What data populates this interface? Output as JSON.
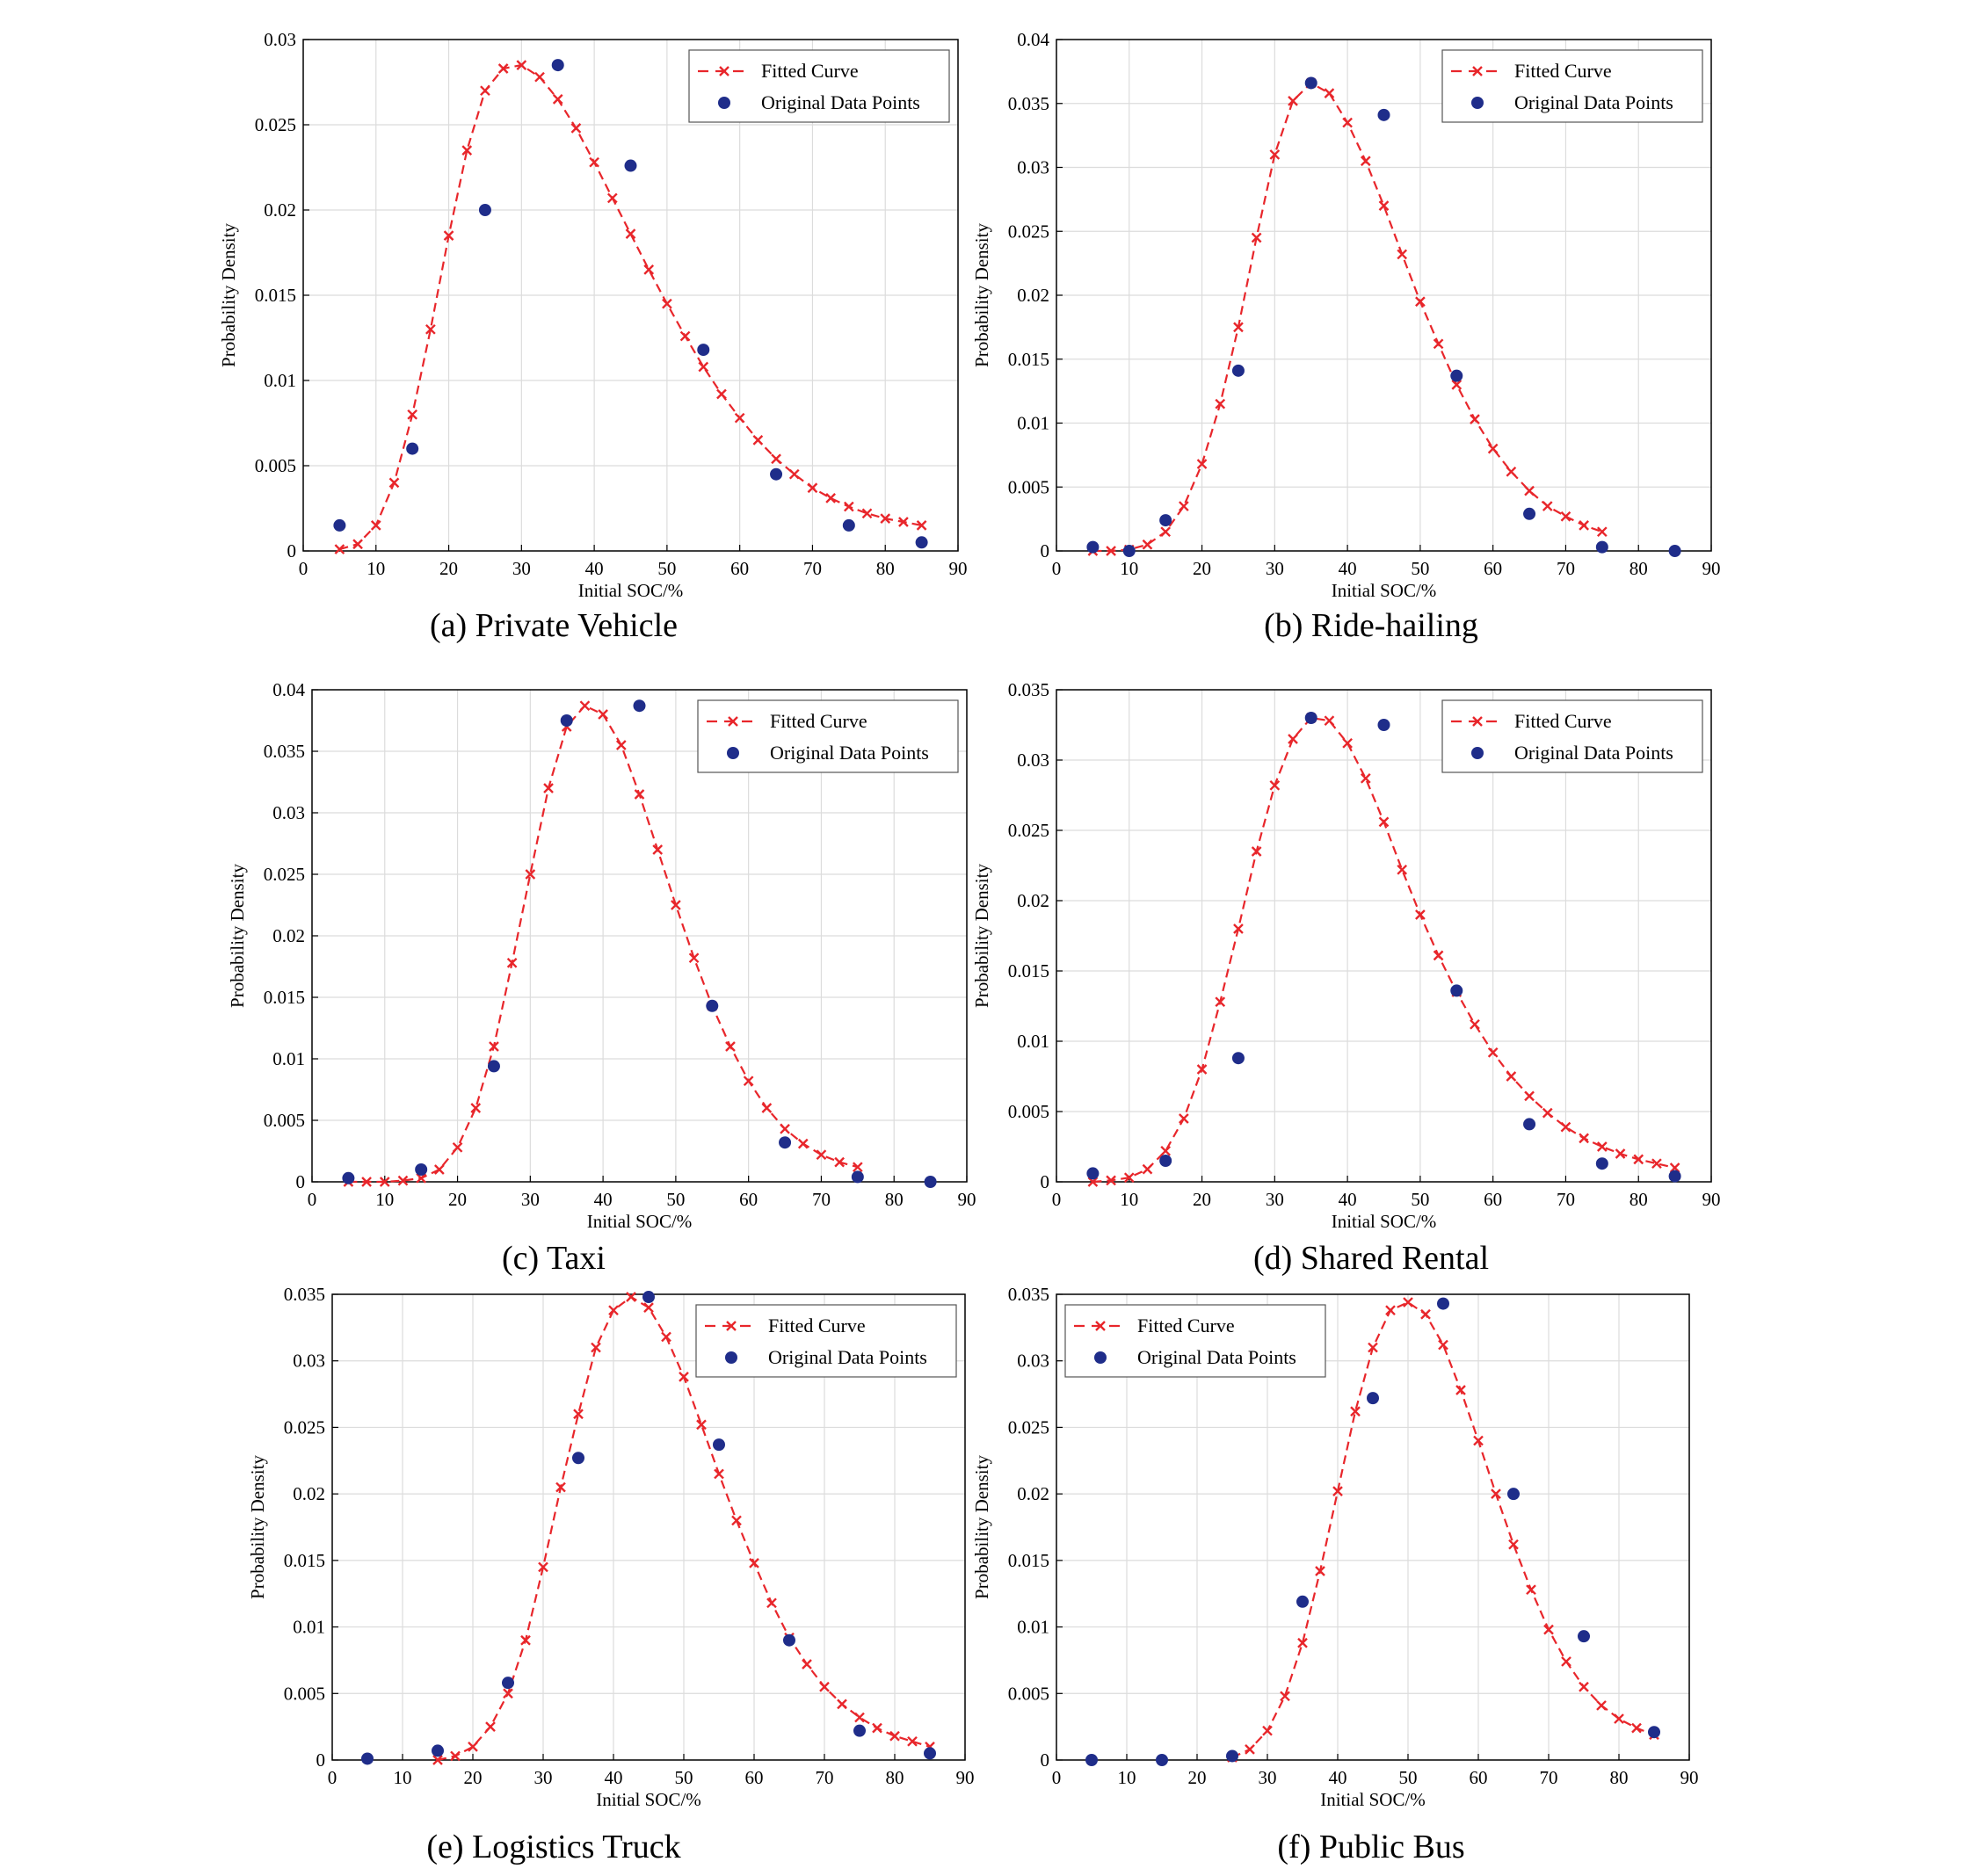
{
  "colors": {
    "fitted": "#e8262b",
    "points": "#1f2d8a",
    "grid": "#dcdcdc",
    "frame": "#000000"
  },
  "chart_data": [
    {
      "type": "scatter",
      "caption": "(a) Private Vehicle",
      "xlabel": "Initial SOC/%",
      "ylabel": "Probability Density",
      "xlim": [
        0,
        90
      ],
      "ylim": [
        0,
        0.03
      ],
      "xticks": [
        "0",
        "10",
        "20",
        "30",
        "40",
        "50",
        "60",
        "70",
        "80",
        "90"
      ],
      "yticks": [
        "0",
        "0.005",
        "0.01",
        "0.015",
        "0.02",
        "0.025",
        "0.03"
      ],
      "grid": true,
      "legend_position": "top-right",
      "series": [
        {
          "name": "Fitted Curve",
          "style": "dashed line with x markers",
          "x": [
            5,
            7.5,
            10,
            12.5,
            15,
            17.5,
            20,
            22.5,
            25,
            27.5,
            30,
            32.5,
            35,
            37.5,
            40,
            42.5,
            45,
            47.5,
            50,
            52.5,
            55,
            57.5,
            60,
            62.5,
            65,
            67.5,
            70,
            72.5,
            75,
            77.5,
            80,
            82.5,
            85
          ],
          "y": [
            0.0001,
            0.0004,
            0.0015,
            0.004,
            0.008,
            0.013,
            0.0185,
            0.0235,
            0.027,
            0.0283,
            0.0285,
            0.0278,
            0.0265,
            0.0248,
            0.0228,
            0.0207,
            0.0186,
            0.0165,
            0.0145,
            0.0126,
            0.0108,
            0.0092,
            0.0078,
            0.0065,
            0.0054,
            0.0045,
            0.0037,
            0.0031,
            0.0026,
            0.0022,
            0.0019,
            0.0017,
            0.0015
          ]
        },
        {
          "name": "Original Data Points",
          "style": "markers",
          "x": [
            5,
            15,
            25,
            35,
            45,
            55,
            65,
            75,
            85
          ],
          "y": [
            0.0015,
            0.006,
            0.02,
            0.0285,
            0.0226,
            0.0118,
            0.0045,
            0.0015,
            0.0005
          ]
        }
      ]
    },
    {
      "type": "scatter",
      "caption": "(b) Ride-hailing",
      "xlabel": "Initial SOC/%",
      "ylabel": "Probability Density",
      "xlim": [
        0,
        90
      ],
      "ylim": [
        0,
        0.04
      ],
      "xticks": [
        "0",
        "10",
        "20",
        "30",
        "40",
        "50",
        "60",
        "70",
        "80",
        "90"
      ],
      "yticks": [
        "0",
        "0.005",
        "0.01",
        "0.015",
        "0.02",
        "0.025",
        "0.03",
        "0.035",
        "0.04"
      ],
      "grid": true,
      "legend_position": "top-right",
      "series": [
        {
          "name": "Fitted Curve",
          "style": "dashed line with x markers",
          "x": [
            5,
            7.5,
            10,
            12.5,
            15,
            17.5,
            20,
            22.5,
            25,
            27.5,
            30,
            32.5,
            35,
            37.5,
            40,
            42.5,
            45,
            47.5,
            50,
            52.5,
            55,
            57.5,
            60,
            62.5,
            65,
            67.5,
            70,
            72.5,
            75
          ],
          "y": [
            0,
            0,
            0.0001,
            0.0005,
            0.0015,
            0.0035,
            0.0068,
            0.0115,
            0.0175,
            0.0245,
            0.031,
            0.0352,
            0.0366,
            0.0358,
            0.0335,
            0.0305,
            0.027,
            0.0232,
            0.0195,
            0.0162,
            0.013,
            0.0103,
            0.008,
            0.0062,
            0.0047,
            0.0035,
            0.0027,
            0.002,
            0.0015
          ]
        },
        {
          "name": "Original Data Points",
          "style": "markers",
          "x": [
            5,
            10,
            15,
            25,
            35,
            45,
            55,
            65,
            75,
            85
          ],
          "y": [
            0.0003,
            0,
            0.0024,
            0.0141,
            0.0366,
            0.0341,
            0.0137,
            0.0029,
            0.0003,
            0
          ]
        }
      ]
    },
    {
      "type": "scatter",
      "caption": "(c) Taxi",
      "xlabel": "Initial SOC/%",
      "ylabel": "Probability Density",
      "xlim": [
        0,
        90
      ],
      "ylim": [
        0,
        0.04
      ],
      "xticks": [
        "0",
        "10",
        "20",
        "30",
        "40",
        "50",
        "60",
        "70",
        "80",
        "90"
      ],
      "yticks": [
        "0",
        "0.005",
        "0.01",
        "0.015",
        "0.02",
        "0.025",
        "0.03",
        "0.035",
        "0.04"
      ],
      "grid": true,
      "legend_position": "top-right",
      "series": [
        {
          "name": "Fitted Curve",
          "style": "dashed line with x markers",
          "x": [
            5,
            7.5,
            10,
            12.5,
            15,
            17.5,
            20,
            22.5,
            25,
            27.5,
            30,
            32.5,
            35,
            37.5,
            40,
            42.5,
            45,
            47.5,
            50,
            52.5,
            55,
            57.5,
            60,
            62.5,
            65,
            67.5,
            70,
            72.5,
            75
          ],
          "y": [
            0,
            0,
            0,
            0.0001,
            0.0003,
            0.001,
            0.0028,
            0.006,
            0.011,
            0.0178,
            0.025,
            0.032,
            0.037,
            0.0387,
            0.038,
            0.0355,
            0.0315,
            0.027,
            0.0225,
            0.0182,
            0.0143,
            0.011,
            0.0082,
            0.006,
            0.0043,
            0.0031,
            0.0022,
            0.0016,
            0.0012
          ]
        },
        {
          "name": "Original Data Points",
          "style": "markers",
          "x": [
            5,
            15,
            25,
            35,
            45,
            55,
            65,
            75,
            85
          ],
          "y": [
            0.0003,
            0.001,
            0.0094,
            0.0375,
            0.0387,
            0.0143,
            0.0032,
            0.0004,
            0
          ]
        }
      ]
    },
    {
      "type": "scatter",
      "caption": "(d) Shared Rental",
      "xlabel": "Initial SOC/%",
      "ylabel": "Probability Density",
      "xlim": [
        0,
        90
      ],
      "ylim": [
        0,
        0.035
      ],
      "xticks": [
        "0",
        "10",
        "20",
        "30",
        "40",
        "50",
        "60",
        "70",
        "80",
        "90"
      ],
      "yticks": [
        "0",
        "0.005",
        "0.01",
        "0.015",
        "0.02",
        "0.025",
        "0.03",
        "0.035"
      ],
      "grid": true,
      "legend_position": "top-right",
      "series": [
        {
          "name": "Fitted Curve",
          "style": "dashed line with x markers",
          "x": [
            5,
            7.5,
            10,
            12.5,
            15,
            17.5,
            20,
            22.5,
            25,
            27.5,
            30,
            32.5,
            35,
            37.5,
            40,
            42.5,
            45,
            47.5,
            50,
            52.5,
            55,
            57.5,
            60,
            62.5,
            65,
            67.5,
            70,
            72.5,
            75,
            77.5,
            80,
            82.5,
            85
          ],
          "y": [
            0,
            0.0001,
            0.0003,
            0.0009,
            0.0022,
            0.0045,
            0.008,
            0.0128,
            0.018,
            0.0235,
            0.0282,
            0.0315,
            0.033,
            0.0328,
            0.0312,
            0.0287,
            0.0256,
            0.0222,
            0.019,
            0.0161,
            0.0135,
            0.0112,
            0.0092,
            0.0075,
            0.0061,
            0.0049,
            0.0039,
            0.0031,
            0.0025,
            0.002,
            0.0016,
            0.0013,
            0.001
          ]
        },
        {
          "name": "Original Data Points",
          "style": "markers",
          "x": [
            5,
            15,
            25,
            35,
            45,
            55,
            65,
            75,
            85
          ],
          "y": [
            0.0006,
            0.0015,
            0.0088,
            0.033,
            0.0325,
            0.0136,
            0.0041,
            0.0013,
            0.0004
          ]
        }
      ]
    },
    {
      "type": "scatter",
      "caption": "(e) Logistics Truck",
      "xlabel": "Initial SOC/%",
      "ylabel": "Probability Density",
      "xlim": [
        0,
        90
      ],
      "ylim": [
        0,
        0.035
      ],
      "xticks": [
        "0",
        "10",
        "20",
        "30",
        "40",
        "50",
        "60",
        "70",
        "80",
        "90"
      ],
      "yticks": [
        "0",
        "0.005",
        "0.01",
        "0.015",
        "0.02",
        "0.025",
        "0.03",
        "0.035"
      ],
      "grid": true,
      "legend_position": "top-right",
      "series": [
        {
          "name": "Fitted Curve",
          "style": "dashed line with x markers",
          "x": [
            15,
            17.5,
            20,
            22.5,
            25,
            27.5,
            30,
            32.5,
            35,
            37.5,
            40,
            42.5,
            45,
            47.5,
            50,
            52.5,
            55,
            57.5,
            60,
            62.5,
            65,
            67.5,
            70,
            72.5,
            75,
            77.5,
            80,
            82.5,
            85
          ],
          "y": [
            0,
            0.0003,
            0.001,
            0.0025,
            0.005,
            0.009,
            0.0145,
            0.0205,
            0.026,
            0.031,
            0.0338,
            0.0348,
            0.034,
            0.0318,
            0.0288,
            0.0252,
            0.0215,
            0.018,
            0.0148,
            0.0118,
            0.0092,
            0.0072,
            0.0055,
            0.0042,
            0.0032,
            0.0024,
            0.0018,
            0.0014,
            0.001
          ]
        },
        {
          "name": "Original Data Points",
          "style": "markers",
          "x": [
            5,
            15,
            25,
            35,
            45,
            55,
            65,
            75,
            85
          ],
          "y": [
            0.0001,
            0.0007,
            0.0058,
            0.0227,
            0.0348,
            0.0237,
            0.009,
            0.0022,
            0.0005
          ]
        }
      ]
    },
    {
      "type": "scatter",
      "caption": "(f) Public Bus",
      "xlabel": "Initial SOC/%",
      "ylabel": "Probability Density",
      "xlim": [
        0,
        90
      ],
      "ylim": [
        0,
        0.035
      ],
      "xticks": [
        "0",
        "10",
        "20",
        "30",
        "40",
        "50",
        "60",
        "70",
        "80",
        "90"
      ],
      "yticks": [
        "0",
        "0.005",
        "0.01",
        "0.015",
        "0.02",
        "0.025",
        "0.03",
        "0.035"
      ],
      "grid": true,
      "legend_position": "top-left",
      "series": [
        {
          "name": "Fitted Curve",
          "style": "dashed line with x markers",
          "x": [
            25,
            27.5,
            30,
            32.5,
            35,
            37.5,
            40,
            42.5,
            45,
            47.5,
            50,
            52.5,
            55,
            57.5,
            60,
            62.5,
            65,
            67.5,
            70,
            72.5,
            75,
            77.5,
            80,
            82.5,
            85
          ],
          "y": [
            0.0002,
            0.0008,
            0.0022,
            0.0048,
            0.0088,
            0.0142,
            0.0202,
            0.0262,
            0.031,
            0.0338,
            0.0344,
            0.0335,
            0.0312,
            0.0278,
            0.024,
            0.02,
            0.0162,
            0.0128,
            0.0098,
            0.0074,
            0.0055,
            0.0041,
            0.0031,
            0.0024,
            0.0019
          ]
        },
        {
          "name": "Original Data Points",
          "style": "markers",
          "x": [
            5,
            15,
            25,
            35,
            45,
            55,
            65,
            75,
            85
          ],
          "y": [
            0,
            0,
            0.0003,
            0.0119,
            0.0272,
            0.0343,
            0.02,
            0.0093,
            0.0021
          ]
        }
      ]
    }
  ]
}
